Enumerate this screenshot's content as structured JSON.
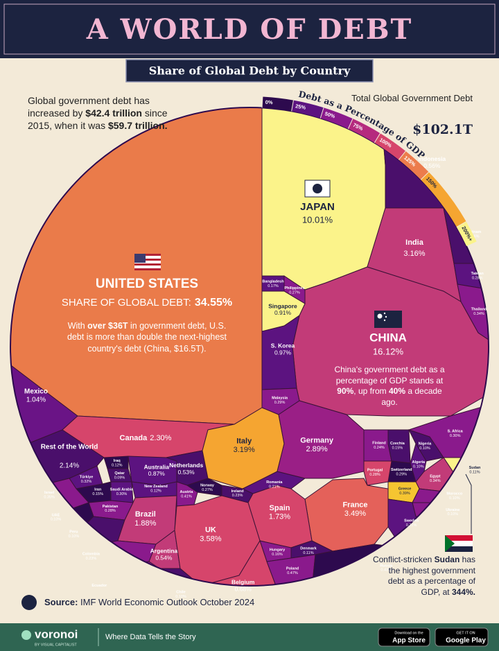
{
  "header": {
    "title": "A WORLD OF DEBT",
    "subtitle": "Share of Global Debt by Country"
  },
  "intro": [
    "Global government debt has increased by ",
    "$42.4 trillion",
    " since 2015, when it was ",
    "$59.7 trillion."
  ],
  "total": {
    "label": "Total Global Government Debt",
    "value": "$102.1T"
  },
  "us_share_label": "SHARE OF GLOBAL DEBT:",
  "us_note": [
    "With ",
    "over $36T",
    " in government debt, U.S. debt is more than double the next-highest country's debt (China, $16.5T)."
  ],
  "china_note": [
    "China's government debt as a percentage of GDP stands at ",
    "90%",
    ", up from ",
    "40%",
    " a decade ago."
  ],
  "sudan_note": [
    "Conflict-stricken ",
    "Sudan",
    " has the highest government debt as a percentage of GDP, at ",
    "344%."
  ],
  "source": [
    "Source:",
    " IMF World Economic Outlook October 2024"
  ],
  "footer": {
    "brand": "voronoi",
    "by": "BY VISUAL CAPITALIST",
    "tagline": "Where Data Tells the Story",
    "app_store": [
      "Download on the",
      "App Store"
    ],
    "google_play": [
      "GET IT ON",
      "Google Play"
    ]
  },
  "chart_data": {
    "type": "voronoi",
    "color_scale": {
      "title": "Debt as a Percentage of GDP",
      "lim": [
        0,
        200
      ],
      "ticks": [
        {
          "value": 0,
          "label": "0%"
        },
        {
          "value": 25,
          "label": "25%"
        },
        {
          "value": 50,
          "label": "50%"
        },
        {
          "value": 75,
          "label": "75%"
        },
        {
          "value": 100,
          "label": "100%"
        },
        {
          "value": 125,
          "label": "125%"
        },
        {
          "value": 150,
          "label": "150%"
        },
        {
          "value": 200,
          "label": "200%+"
        }
      ],
      "colors": [
        "#2d0a4e",
        "#5c1380",
        "#8a1a8c",
        "#b52a7e",
        "#d6456b",
        "#ec7c4c",
        "#f5a531",
        "#fbf38a"
      ]
    },
    "categories": [
      "UNITED STATES",
      "JAPAN",
      "CHINA",
      "India",
      "Indonesia",
      "Vietnam",
      "Taiwan",
      "Thailand",
      "Bangladesh",
      "Philippines",
      "Singapore",
      "S. Korea",
      "Malaysia",
      "Mexico",
      "Canada",
      "Rest of the World",
      "Türkiye",
      "Iraq",
      "Qatar",
      "Iran",
      "Saudi Arabia",
      "Israel",
      "Pakistan",
      "UAE",
      "Peru",
      "Australia",
      "New Zealand",
      "Brazil",
      "Colombia",
      "Argentina",
      "Chile",
      "Ecuador",
      "Netherlands",
      "Austria",
      "Norway",
      "Ireland",
      "Romania",
      "Italy",
      "Germany",
      "Finland",
      "Czechia",
      "Switzerland",
      "Portugal",
      "S. Africa",
      "Nigeria",
      "Algeria",
      "Sudan",
      "Egypt",
      "Greece",
      "Morocco",
      "Ukraine",
      "Sweden",
      "France",
      "Spain",
      "UK",
      "Hungary",
      "Denmark",
      "Belgium",
      "Poland",
      "Russia"
    ],
    "values": [
      34.55,
      10.01,
      16.12,
      3.16,
      0.56,
      0.16,
      0.28,
      0.34,
      0.17,
      0.27,
      0.91,
      0.97,
      0.29,
      1.04,
      2.3,
      2.14,
      0.32,
      0.12,
      0.09,
      0.15,
      0.3,
      0.35,
      0.28,
      0.1,
      0.1,
      0.87,
      0.12,
      1.88,
      0.23,
      0.54,
      0.1,
      0.05,
      0.53,
      0.41,
      0.27,
      0.23,
      0.21,
      3.19,
      2.89,
      0.24,
      0.15,
      0.29,
      0.28,
      0.3,
      0.1,
      0.1,
      0.11,
      0.34,
      0.39,
      0.1,
      0.1,
      0.22,
      3.49,
      1.73,
      3.58,
      0.16,
      0.11,
      0.68,
      0.47,
      0.43
    ],
    "value_labels": [
      "34.55%",
      "10.01%",
      "16.12%",
      "3.16%",
      "0.56%",
      "0.16%",
      "0.28%",
      "0.34%",
      "0.17%",
      "0.27%",
      "0.91%",
      "0.97%",
      "0.29%",
      "1.04%",
      "2.30%",
      "2.14%",
      "0.32%",
      "0.12%",
      "0.09%",
      "0.15%",
      "0.30%",
      "0.35%",
      "0.28%",
      "0.10%",
      "0.10%",
      "0.87%",
      "0.12%",
      "1.88%",
      "0.23%",
      "0.54%",
      "0.10%",
      null,
      "0.53%",
      "0.41%",
      "0.27%",
      "0.23%",
      "0.21%",
      "3.19%",
      "2.89%",
      "0.24%",
      "0.15%",
      "0.29%",
      "0.28%",
      "0.30%",
      "0.10%",
      "0.10%",
      "0.11%",
      "0.34%",
      "0.39%",
      "0.10%",
      "0.10%",
      "0.22%",
      "3.49%",
      "1.73%",
      "3.58%",
      "0.16%",
      "0.11%",
      "0.68%",
      "0.47%",
      "0.43%"
    ],
    "colors": [
      "#ea7b4a",
      "#fbf38a",
      "#c23b78",
      "#c23b78",
      "#4a0f6b",
      "#4a0f6b",
      "#5c1380",
      "#8a1a8c",
      "#5c1380",
      "#8a1a8c",
      "#fbf38a",
      "#5c1380",
      "#8a1a8c",
      "#6a1486",
      "#d6456b",
      "#4a0f6b",
      "#5c1380",
      "#2d0a4e",
      "#4a0f6b",
      "#2d0a4e",
      "#5c1380",
      "#8a1a8c",
      "#8a1a8c",
      "#2d0a4e",
      "#4a0f6b",
      "#5c1380",
      "#5c1380",
      "#c23b78",
      "#8a1a8c",
      "#c23b78",
      "#4a0f6b",
      "#8a1a8c",
      "#4a0f6b",
      "#8a1a8c",
      "#2d0a4e",
      "#4a0f6b",
      "#5c1380",
      "#f5a531",
      "#9a1f86",
      "#8a1a8c",
      "#4a0f6b",
      "#2d0a4e",
      "#d6456b",
      "#8a1a8c",
      "#4a0f6b",
      "#5c1380",
      "#fbf38a",
      "#c23b78",
      "#f5c531",
      "#8a1a8c",
      "#8a1a8c",
      "#5c1380",
      "#e4615a",
      "#d6456b",
      "#d6456b",
      "#8a1a8c",
      "#4a0f6b",
      "#d6456b",
      "#8a1a8c",
      "#2d0a4e"
    ]
  }
}
